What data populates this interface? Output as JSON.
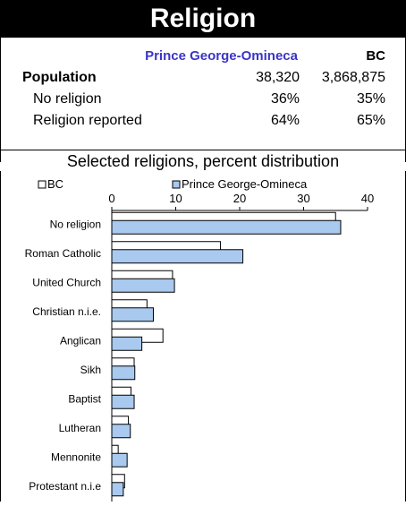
{
  "header": {
    "title": "Religion"
  },
  "summary": {
    "col_region": "Prince George-Omineca",
    "col_bc": "BC",
    "rows": [
      {
        "label": "Population",
        "region": "38,320",
        "bc": "3,868,875"
      },
      {
        "label": "No religion",
        "region": "36%",
        "bc": "35%"
      },
      {
        "label": "Religion reported",
        "region": "64%",
        "bc": "65%"
      }
    ]
  },
  "chart_data": {
    "type": "bar",
    "orientation": "horizontal",
    "title": "Selected religions, percent distribution",
    "xlim": [
      0,
      40
    ],
    "xticks": [
      0,
      10,
      20,
      30,
      40
    ],
    "legend_position": "top",
    "categories": [
      "No religion",
      "Roman Catholic",
      "United Church",
      "Christian n.i.e.",
      "Anglican",
      "Sikh",
      "Baptist",
      "Lutheran",
      "Mennonite",
      "Protestant n.i.e"
    ],
    "series": [
      {
        "name": "BC",
        "color": "#ffffff",
        "values": [
          35,
          17,
          9.5,
          5.5,
          8,
          3.5,
          3,
          2.6,
          1,
          2
        ]
      },
      {
        "name": "Prince George-Omineca",
        "color": "#a9c9ee",
        "values": [
          35.8,
          20.5,
          9.8,
          6.5,
          4.7,
          3.6,
          3.5,
          2.9,
          2.4,
          1.8
        ]
      }
    ]
  }
}
